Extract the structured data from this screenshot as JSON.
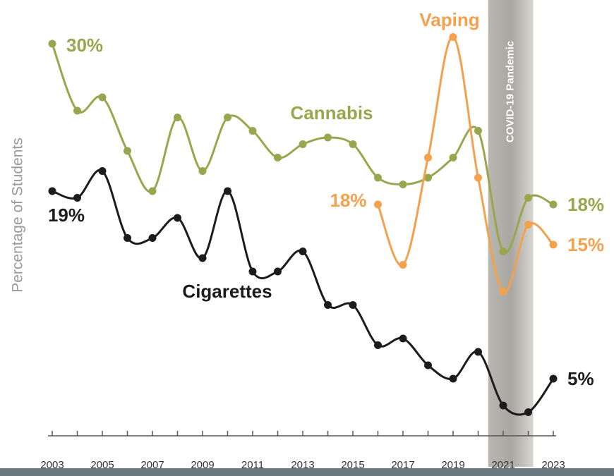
{
  "chart_data": {
    "type": "line",
    "ylabel": "Percentage of Students",
    "x": [
      2003,
      2004,
      2005,
      2006,
      2007,
      2008,
      2009,
      2010,
      2011,
      2012,
      2013,
      2014,
      2015,
      2016,
      2017,
      2018,
      2019,
      2020,
      2021,
      2022,
      2023
    ],
    "xlim": [
      2003,
      2023
    ],
    "xticks": [
      2003,
      2005,
      2007,
      2009,
      2011,
      2013,
      2015,
      2017,
      2019,
      2021,
      2023
    ],
    "ylim": [
      0,
      32
    ],
    "grid": false,
    "series": [
      {
        "name": "Cannabis",
        "color": "#9aa64e",
        "values": [
          30,
          25,
          26,
          22,
          19,
          24.5,
          20.5,
          24.5,
          23.5,
          21.5,
          22.5,
          23,
          22.5,
          20,
          19.5,
          20,
          21.5,
          23.5,
          14.5,
          18.5,
          18
        ],
        "value_labels": [
          "30%",
          null,
          null,
          null,
          null,
          null,
          null,
          null,
          null,
          null,
          null,
          null,
          null,
          null,
          null,
          null,
          null,
          null,
          null,
          null,
          "18%"
        ]
      },
      {
        "name": "Cigarettes",
        "color": "#1c1c1c",
        "values": [
          19,
          18.5,
          20.5,
          15.5,
          15.5,
          17,
          14,
          19,
          13,
          13,
          14.5,
          10.5,
          10.5,
          7.5,
          8,
          6,
          5,
          7,
          3,
          2.5,
          5
        ],
        "value_labels": [
          "19%",
          null,
          null,
          null,
          null,
          null,
          null,
          null,
          null,
          null,
          null,
          null,
          null,
          null,
          null,
          null,
          null,
          null,
          null,
          null,
          "5%"
        ]
      },
      {
        "name": "Vaping",
        "color": "#f4a14e",
        "values": [
          null,
          null,
          null,
          null,
          null,
          null,
          null,
          null,
          null,
          null,
          null,
          null,
          null,
          18,
          13.5,
          21.5,
          30.5,
          20,
          11.5,
          16.5,
          15
        ],
        "value_labels": [
          null,
          null,
          null,
          null,
          null,
          null,
          null,
          null,
          null,
          null,
          null,
          null,
          null,
          "18%",
          null,
          null,
          null,
          null,
          null,
          null,
          "15%"
        ]
      }
    ],
    "shade": {
      "label": "COVID-19 Pandemic",
      "x": [
        2020.4,
        2022.2
      ]
    }
  }
}
